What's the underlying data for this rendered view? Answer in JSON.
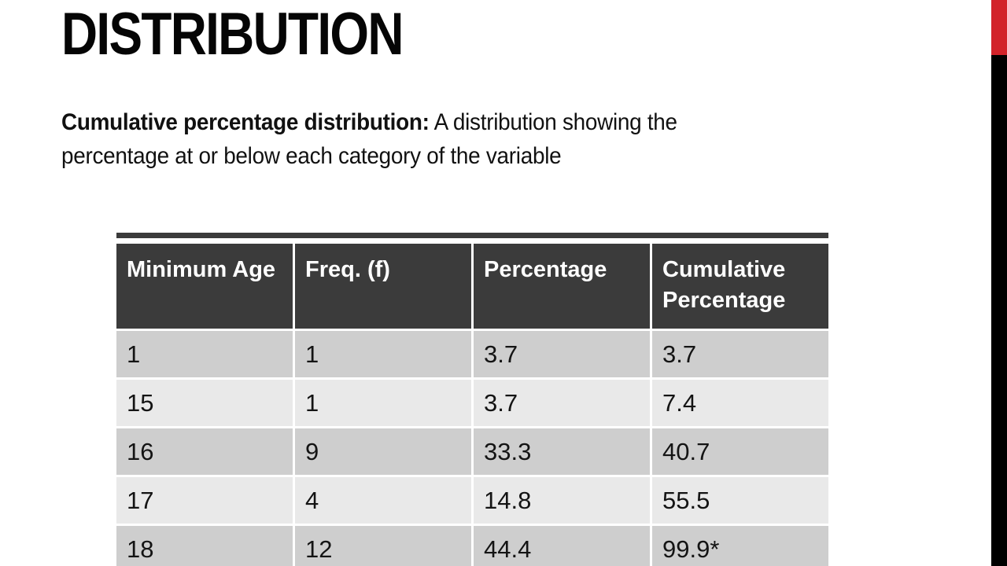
{
  "slide": {
    "title": "DISTRIBUTION",
    "definition": {
      "term": "Cumulative percentage distribution:",
      "line1_rest": " A distribution showing the",
      "line2": "percentage at or below each category of the variable"
    },
    "accent": {
      "red": "#d2232a",
      "black": "#000000"
    }
  },
  "table": {
    "headers": [
      "Minimum Age",
      "Freq. (f)",
      "Percentage",
      "Cumulative Percentage"
    ],
    "rows": [
      [
        "1",
        "1",
        "3.7",
        "3.7"
      ],
      [
        "15",
        "1",
        "3.7",
        "7.4"
      ],
      [
        "16",
        "9",
        "33.3",
        "40.7"
      ],
      [
        "17",
        "4",
        "14.8",
        "55.5"
      ],
      [
        "18",
        "12",
        "44.4",
        "99.9*"
      ]
    ],
    "colors": {
      "header_bg": "#3b3b3b",
      "row_dark": "#cecece",
      "row_light": "#e9e9e9"
    }
  }
}
